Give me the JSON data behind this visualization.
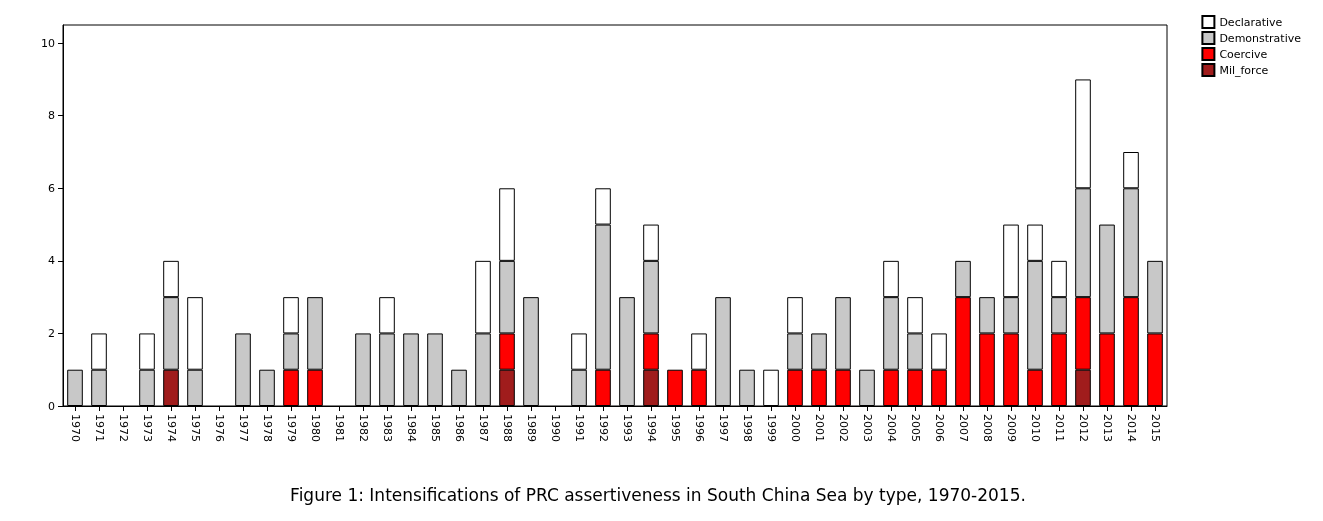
{
  "chart_data": {
    "type": "bar",
    "stacked": true,
    "categories": [
      "1970",
      "1971",
      "1972",
      "1973",
      "1974",
      "1975",
      "1976",
      "1977",
      "1978",
      "1979",
      "1980",
      "1981",
      "1982",
      "1983",
      "1984",
      "1985",
      "1986",
      "1987",
      "1988",
      "1989",
      "1990",
      "1991",
      "1992",
      "1993",
      "1994",
      "1995",
      "1996",
      "1997",
      "1998",
      "1999",
      "2000",
      "2001",
      "2002",
      "2003",
      "2004",
      "2005",
      "2006",
      "2007",
      "2008",
      "2009",
      "2010",
      "2011",
      "2012",
      "2013",
      "2014",
      "2015"
    ],
    "series": [
      {
        "name": "Mil_force",
        "color": "#a01c1c",
        "values": [
          0,
          0,
          0,
          0,
          1,
          0,
          0,
          0,
          0,
          0,
          0,
          0,
          0,
          0,
          0,
          0,
          0,
          0,
          1,
          0,
          0,
          0,
          0,
          0,
          1,
          0,
          0,
          0,
          0,
          0,
          0,
          0,
          0,
          0,
          0,
          0,
          0,
          0,
          0,
          0,
          0,
          0,
          1,
          0,
          0,
          0
        ]
      },
      {
        "name": "Coercive",
        "color": "#ff0000",
        "values": [
          0,
          0,
          0,
          0,
          0,
          0,
          0,
          0,
          0,
          1,
          1,
          0,
          0,
          0,
          0,
          0,
          0,
          0,
          1,
          0,
          0,
          0,
          1,
          0,
          1,
          1,
          1,
          0,
          0,
          0,
          1,
          1,
          1,
          0,
          1,
          1,
          1,
          3,
          2,
          2,
          1,
          2,
          2,
          2,
          3,
          2
        ]
      },
      {
        "name": "Demonstrative",
        "color": "#c8c8c8",
        "values": [
          1,
          1,
          0,
          1,
          2,
          1,
          0,
          2,
          1,
          1,
          2,
          0,
          2,
          2,
          2,
          2,
          1,
          2,
          2,
          3,
          0,
          1,
          4,
          3,
          2,
          0,
          0,
          3,
          1,
          0,
          1,
          1,
          2,
          1,
          2,
          1,
          0,
          1,
          1,
          1,
          3,
          1,
          3,
          3,
          3,
          2
        ]
      },
      {
        "name": "Declarative",
        "color": "#ffffff",
        "values": [
          0,
          1,
          0,
          1,
          1,
          2,
          0,
          0,
          0,
          1,
          0,
          0,
          0,
          1,
          0,
          0,
          0,
          2,
          2,
          0,
          0,
          1,
          1,
          0,
          1,
          0,
          1,
          0,
          0,
          1,
          1,
          0,
          0,
          0,
          1,
          1,
          1,
          0,
          0,
          2,
          1,
          1,
          3,
          0,
          1,
          0
        ]
      }
    ],
    "ylim": [
      0,
      10.5
    ],
    "yticks": [
      0,
      2,
      4,
      6,
      8,
      10
    ],
    "grid": false,
    "legend": "top right",
    "annotations": [
      "Figure 1: Intensifications of PRC assertiveness in South China Sea by type, 1970-2015."
    ]
  }
}
